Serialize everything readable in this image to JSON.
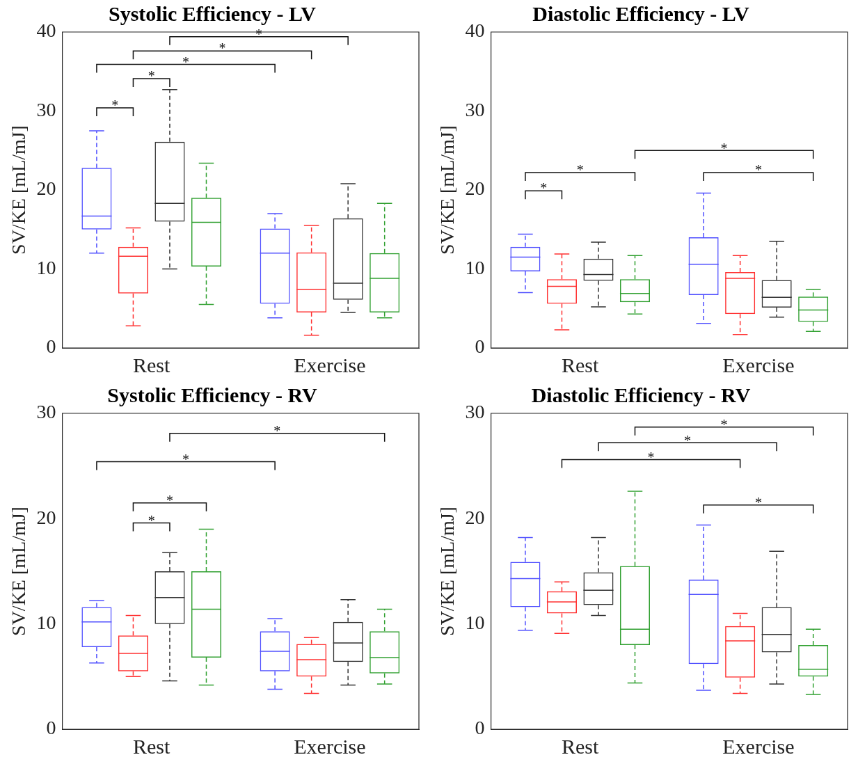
{
  "chart_data": [
    {
      "type": "box",
      "title": "Systolic Efficiency - LV",
      "ylabel": "SV/KE [mL/mJ]",
      "categories": [
        "Rest",
        "Exercise"
      ],
      "ylim": [
        0,
        40
      ],
      "yticks": [
        0,
        10,
        20,
        30,
        40
      ],
      "annotations": [
        "*",
        "*",
        "*",
        "*",
        "*"
      ],
      "series": [
        {
          "color": "#5050ff",
          "boxes": [
            {
              "low": 12,
              "q1": 15,
              "median": 16.7,
              "q3": 22.8,
              "high": 27.5
            },
            {
              "low": 3.8,
              "q1": 5.6,
              "median": 12,
              "q3": 15.1,
              "high": 17
            }
          ]
        },
        {
          "color": "#ff3030",
          "boxes": [
            {
              "low": 2.8,
              "q1": 6.9,
              "median": 11.6,
              "q3": 12.8,
              "high": 15.2
            },
            {
              "low": 1.6,
              "q1": 4.5,
              "median": 7.4,
              "q3": 12.1,
              "high": 15.5
            }
          ]
        },
        {
          "color": "#333333",
          "boxes": [
            {
              "low": 10,
              "q1": 16,
              "median": 18.3,
              "q3": 26.1,
              "high": 32.7
            },
            {
              "low": 4.5,
              "q1": 6.1,
              "median": 8.2,
              "q3": 16.4,
              "high": 20.8
            }
          ]
        },
        {
          "color": "#30a030",
          "boxes": [
            {
              "low": 5.5,
              "q1": 10.3,
              "median": 15.9,
              "q3": 19,
              "high": 23.4
            },
            {
              "low": 3.8,
              "q1": 4.5,
              "median": 8.8,
              "q3": 12,
              "high": 18.3
            }
          ]
        }
      ]
    },
    {
      "type": "box",
      "title": "Diastolic Efficiency - LV",
      "ylabel": "SV/KE [mL/mJ]",
      "categories": [
        "Rest",
        "Exercise"
      ],
      "ylim": [
        0,
        40
      ],
      "yticks": [
        0,
        10,
        20,
        30,
        40
      ],
      "annotations": [
        "*",
        "*",
        "*",
        "*"
      ],
      "series": [
        {
          "color": "#5050ff",
          "boxes": [
            {
              "low": 7,
              "q1": 9.7,
              "median": 11.5,
              "q3": 12.8,
              "high": 14.4
            },
            {
              "low": 3.1,
              "q1": 6.7,
              "median": 10.6,
              "q3": 14,
              "high": 19.6
            }
          ]
        },
        {
          "color": "#ff3030",
          "boxes": [
            {
              "low": 2.3,
              "q1": 5.6,
              "median": 7.8,
              "q3": 8.7,
              "high": 11.9
            },
            {
              "low": 1.7,
              "q1": 4.3,
              "median": 8.8,
              "q3": 9.6,
              "high": 11.7
            }
          ]
        },
        {
          "color": "#333333",
          "boxes": [
            {
              "low": 5.2,
              "q1": 8.5,
              "median": 9.3,
              "q3": 11.3,
              "high": 13.4
            },
            {
              "low": 3.9,
              "q1": 5.1,
              "median": 6.4,
              "q3": 8.6,
              "high": 13.5
            }
          ]
        },
        {
          "color": "#30a030",
          "boxes": [
            {
              "low": 4.3,
              "q1": 5.8,
              "median": 6.9,
              "q3": 8.7,
              "high": 11.7
            },
            {
              "low": 2.1,
              "q1": 3.3,
              "median": 4.8,
              "q3": 6.5,
              "high": 7.4
            }
          ]
        }
      ]
    },
    {
      "type": "box",
      "title": "Systolic Efficiency - RV",
      "ylabel": "SV/KE [mL/mJ]",
      "categories": [
        "Rest",
        "Exercise"
      ],
      "ylim": [
        0,
        30
      ],
      "yticks": [
        0,
        10,
        20,
        30
      ],
      "annotations": [
        "*",
        "*",
        "*",
        "*"
      ],
      "series": [
        {
          "color": "#5050ff",
          "boxes": [
            {
              "low": 6.3,
              "q1": 7.8,
              "median": 10.2,
              "q3": 11.6,
              "high": 12.2
            },
            {
              "low": 3.8,
              "q1": 5.5,
              "median": 7.4,
              "q3": 9.3,
              "high": 10.5
            }
          ]
        },
        {
          "color": "#ff3030",
          "boxes": [
            {
              "low": 5,
              "q1": 5.5,
              "median": 7.2,
              "q3": 8.9,
              "high": 10.8
            },
            {
              "low": 3.4,
              "q1": 5,
              "median": 6.6,
              "q3": 8.1,
              "high": 8.7
            }
          ]
        },
        {
          "color": "#333333",
          "boxes": [
            {
              "low": 4.6,
              "q1": 10,
              "median": 12.5,
              "q3": 15,
              "high": 16.8
            },
            {
              "low": 4.2,
              "q1": 6.4,
              "median": 8.2,
              "q3": 10.2,
              "high": 12.3
            }
          ]
        },
        {
          "color": "#30a030",
          "boxes": [
            {
              "low": 4.2,
              "q1": 6.8,
              "median": 11.4,
              "q3": 15,
              "high": 19
            },
            {
              "low": 4.3,
              "q1": 5.3,
              "median": 6.8,
              "q3": 9.3,
              "high": 11.4
            }
          ]
        }
      ]
    },
    {
      "type": "box",
      "title": "Diastolic Efficiency - RV",
      "ylabel": "SV/KE [mL/mJ]",
      "categories": [
        "Rest",
        "Exercise"
      ],
      "ylim": [
        0,
        30
      ],
      "yticks": [
        0,
        10,
        20,
        30
      ],
      "annotations": [
        "*",
        "*",
        "*",
        "*"
      ],
      "series": [
        {
          "color": "#5050ff",
          "boxes": [
            {
              "low": 9.4,
              "q1": 11.6,
              "median": 14.3,
              "q3": 15.9,
              "high": 18.2
            },
            {
              "low": 3.7,
              "q1": 6.2,
              "median": 12.8,
              "q3": 14.2,
              "high": 19.4
            }
          ]
        },
        {
          "color": "#ff3030",
          "boxes": [
            {
              "low": 9.1,
              "q1": 11,
              "median": 12.1,
              "q3": 13.1,
              "high": 14
            },
            {
              "low": 3.4,
              "q1": 4.9,
              "median": 8.4,
              "q3": 9.8,
              "high": 11
            }
          ]
        },
        {
          "color": "#333333",
          "boxes": [
            {
              "low": 10.8,
              "q1": 11.8,
              "median": 13.2,
              "q3": 14.9,
              "high": 18.2
            },
            {
              "low": 4.3,
              "q1": 7.3,
              "median": 9,
              "q3": 11.6,
              "high": 16.9
            }
          ]
        },
        {
          "color": "#30a030",
          "boxes": [
            {
              "low": 4.4,
              "q1": 8,
              "median": 9.5,
              "q3": 15.5,
              "high": 22.6
            },
            {
              "low": 3.3,
              "q1": 5,
              "median": 5.7,
              "q3": 8,
              "high": 9.5
            }
          ]
        }
      ]
    }
  ]
}
